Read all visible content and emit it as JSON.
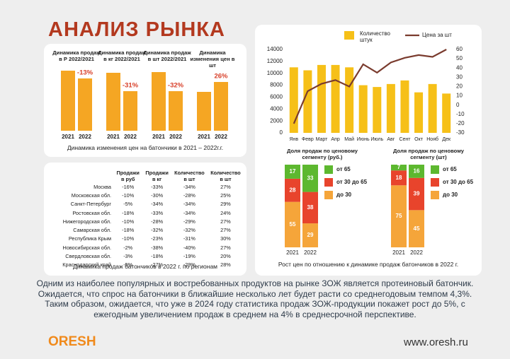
{
  "header": {
    "title": "АНАЛИЗ РЫНКА"
  },
  "chart_data": [
    {
      "type": "bar",
      "title": "Динамика продаж в Р 2022/2021",
      "categories": [
        "2021",
        "2022"
      ],
      "values": [
        85,
        74
      ],
      "annotation": "-13%",
      "color": "#f5a623"
    },
    {
      "type": "bar",
      "title": "Динамика продаж в кг 2022/2021",
      "categories": [
        "2021",
        "2022"
      ],
      "values": [
        82,
        56
      ],
      "annotation": "-31%",
      "color": "#f5a623"
    },
    {
      "type": "bar",
      "title": "Динамика продаж в шт 2022/2021",
      "categories": [
        "2021",
        "2022"
      ],
      "values": [
        83,
        56
      ],
      "annotation": "-32%",
      "color": "#f5a623"
    },
    {
      "type": "bar",
      "title": "Динамика изменения цен в шт",
      "categories": [
        "2021",
        "2022"
      ],
      "values": [
        55,
        69
      ],
      "annotation": "26%",
      "color": "#f5a623"
    },
    {
      "type": "combo",
      "categories": [
        "Янв",
        "Февр",
        "Март",
        "Апр",
        "Май",
        "Июнь",
        "Июль",
        "Авг",
        "Сент",
        "Окт",
        "Нояб",
        "Дек"
      ],
      "series": [
        {
          "name": "Количество штук",
          "color": "#f6c018",
          "type": "bar",
          "values": [
            11000,
            10500,
            11400,
            11400,
            11000,
            8000,
            7700,
            8200,
            8800,
            6800,
            8200,
            6600
          ]
        },
        {
          "name": "Цена за шт",
          "color": "#7a3b2e",
          "type": "line",
          "axis": "y2",
          "values": [
            -20,
            15,
            23,
            27,
            20,
            44,
            35,
            46,
            51,
            54,
            52,
            60
          ]
        }
      ],
      "ylim": [
        0,
        14000
      ],
      "yticks": [
        0,
        2000,
        4000,
        6000,
        8000,
        10000,
        12000,
        14000
      ],
      "y2lim": [
        -30,
        60
      ],
      "y2ticks": [
        -30,
        -20,
        -10,
        0,
        10,
        20,
        30,
        40,
        50,
        60
      ]
    },
    {
      "type": "stacked_bar",
      "title": "Доля продаж по ценовому сегменту (руб.)",
      "categories": [
        "2021",
        "2022"
      ],
      "series": [
        {
          "name": "от 65",
          "color": "#5db82f",
          "values": [
            17,
            33
          ]
        },
        {
          "name": "от 30 до 65",
          "color": "#e8442c",
          "values": [
            28,
            38
          ]
        },
        {
          "name": "до 30",
          "color": "#f5a53a",
          "values": [
            55,
            29
          ]
        }
      ]
    },
    {
      "type": "stacked_bar",
      "title": "Доля продаж по ценовому сегменту (шт)",
      "categories": [
        "2021",
        "2022"
      ],
      "series": [
        {
          "name": "от 65",
          "color": "#5db82f",
          "values": [
            7,
            16
          ]
        },
        {
          "name": "от 30 до 65",
          "color": "#e8442c",
          "values": [
            18,
            39
          ]
        },
        {
          "name": "до 30",
          "color": "#f5a53a",
          "values": [
            75,
            45
          ]
        }
      ]
    }
  ],
  "captions": {
    "prices": "Динамика изменения цен на батончики в 2021 – 2022г.г.",
    "segments": "Рост цен по отношению к динамике продаж батончиков в 2022 г."
  },
  "table": {
    "header": [
      "Продажи в руб",
      "Продажи в кг",
      "Количество в шт",
      "Количество в шт"
    ],
    "rows": [
      [
        "Москва",
        "-16%",
        "-33%",
        "-34%",
        "27%"
      ],
      [
        "Московская обл.",
        "-10%",
        "-30%",
        "-28%",
        "25%"
      ],
      [
        "Санкт-Петербург",
        "-5%",
        "-34%",
        "-34%",
        "29%"
      ],
      [
        "Ростовская обл.",
        "-18%",
        "-33%",
        "-34%",
        "24%"
      ],
      [
        "Нижегородская обл.",
        "-10%",
        "-28%",
        "-29%",
        "27%"
      ],
      [
        "Самарская обл.",
        "-18%",
        "-32%",
        "-32%",
        "27%"
      ],
      [
        "Республика Крым",
        "-10%",
        "-23%",
        "-31%",
        "30%"
      ],
      [
        "Новосибирская обл.",
        "-2%",
        "-38%",
        "-40%",
        "27%"
      ],
      [
        "Свердловская обл.",
        "-3%",
        "-18%",
        "-19%",
        "20%"
      ],
      [
        "Краснодарский край",
        "-5%",
        "-27%",
        "-29%",
        "28%"
      ]
    ],
    "caption": "Динамика продаж батончиков в 2022 г. по регионам"
  },
  "paragraph": "Одним из наиболее популярных и востребованных продуктов на рынке ЗОЖ является протеиновый батончик. Ожидается, что спрос на батончики в ближайшие несколько лет будет расти со среднегодовым темпом 4,3%. Таким образом, ожидается, что уже в 2024 году статистика продаж ЗОЖ-продукции покажет рост до 5%, с ежегодным увеличением продаж в среднем на 4% в среднесрочной перспективе.",
  "footer": {
    "brand": "ORESH",
    "url": "www.oresh.ru"
  }
}
